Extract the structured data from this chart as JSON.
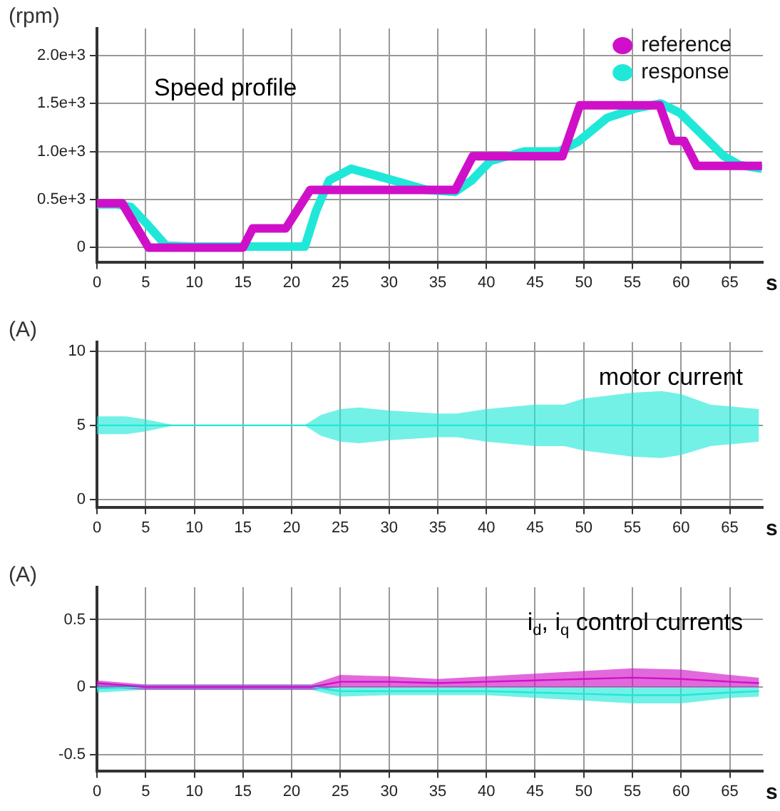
{
  "chart_data": [
    {
      "type": "line",
      "title": "Speed profile",
      "ylabel": "(rpm)",
      "xlabel": "s",
      "xlim": [
        0,
        68.4
      ],
      "xticks": [
        0,
        5,
        10,
        15,
        20,
        25,
        30,
        35,
        40,
        45,
        50,
        55,
        60,
        65
      ],
      "ylim": [
        -150,
        2280
      ],
      "yticks": [
        0,
        {
          "value": 500,
          "label": "0.5e+3"
        },
        {
          "value": 1000,
          "label": "1.0e+3"
        },
        {
          "value": 1500,
          "label": "1.5e+3"
        },
        {
          "value": 2000,
          "label": "2.0e+3"
        }
      ],
      "grid": true,
      "legend": "top right",
      "marker": "none",
      "line_style": "solid",
      "series": [
        {
          "name": "reference",
          "color": "#d010c8",
          "x": [
            0,
            2.6,
            5.3,
            15,
            16,
            19.4,
            21.9,
            36.8,
            38.6,
            47.8,
            49.6,
            57.8,
            59.1,
            60.3,
            61.6,
            68.3
          ],
          "values": [
            460,
            460,
            0,
            0,
            200,
            200,
            600,
            600,
            950,
            950,
            1480,
            1480,
            1110,
            1110,
            850,
            850
          ]
        },
        {
          "name": "response",
          "color": "#20e8d8",
          "x": [
            0,
            2,
            3.5,
            5,
            7.1,
            10,
            15,
            21.35,
            22.5,
            23.85,
            26.1,
            29,
            33.9,
            36.8,
            38.5,
            40.4,
            43.9,
            47.4,
            49.4,
            52.4,
            55.4,
            57.9,
            59.9,
            61.9,
            64.4,
            66,
            68.3
          ],
          "values": [
            450,
            450,
            420,
            260,
            20,
            10,
            10,
            10,
            380,
            700,
            820,
            740,
            600,
            580,
            700,
            900,
            1000,
            1000,
            1100,
            1350,
            1450,
            1500,
            1400,
            1200,
            950,
            860,
            820
          ]
        }
      ]
    },
    {
      "type": "line",
      "title": "motor current",
      "ylabel": "(A)",
      "xlabel": "s",
      "xlim": [
        0,
        68.4
      ],
      "xticks": [
        0,
        5,
        10,
        15,
        20,
        25,
        30,
        35,
        40,
        45,
        50,
        55,
        60,
        65
      ],
      "ylim": [
        -0.5,
        10.6
      ],
      "yticks": [
        0,
        5,
        10
      ],
      "grid": true,
      "marker": "none",
      "line_style": "solid",
      "x": [
        0,
        3,
        5,
        8,
        21.3,
        23,
        25,
        27,
        30,
        35,
        37,
        40,
        45,
        48,
        50,
        55,
        58,
        60,
        63,
        68
      ],
      "series": [
        {
          "color": "#20e8d8",
          "values": [
            5,
            5,
            5,
            5,
            5,
            5,
            5,
            5,
            5,
            5,
            5,
            5,
            5,
            5,
            5,
            5,
            5,
            5,
            5,
            5
          ],
          "lower": [
            4.4,
            4.4,
            4.6,
            5.0,
            5.0,
            4.3,
            3.9,
            3.8,
            4.0,
            4.2,
            4.2,
            3.9,
            3.6,
            3.6,
            3.3,
            2.9,
            2.8,
            3.0,
            3.6,
            3.9
          ],
          "upper": [
            5.6,
            5.6,
            5.4,
            5.0,
            5.0,
            5.7,
            6.1,
            6.2,
            6.0,
            5.8,
            5.8,
            6.1,
            6.4,
            6.4,
            6.8,
            7.2,
            7.3,
            7.1,
            6.4,
            6.1
          ]
        }
      ]
    },
    {
      "type": "line",
      "title": "i$_{d}$, i$_{q}$ control currents",
      "ylabel": "(A)",
      "xlabel": "s",
      "xlim": [
        0,
        68.4
      ],
      "xticks": [
        0,
        5,
        10,
        15,
        20,
        25,
        30,
        35,
        40,
        45,
        50,
        55,
        60,
        65
      ],
      "ylim": [
        -0.62,
        0.74
      ],
      "yticks": [
        0.5,
        0,
        -0.5
      ],
      "grid": true,
      "marker": "none",
      "line_style": "solid",
      "x": [
        0,
        5,
        10,
        15,
        22,
        25,
        30,
        35,
        40,
        45,
        50,
        55,
        60,
        65,
        68
      ],
      "series": [
        {
          "color": "#d010c8",
          "values": [
            0.03,
            0,
            0,
            0,
            0,
            0.04,
            0.04,
            0.03,
            0.04,
            0.05,
            0.06,
            0.07,
            0.06,
            0.04,
            0.03
          ],
          "lower": [
            0,
            -0.02,
            -0.02,
            -0.02,
            -0.02,
            0,
            0,
            0,
            0,
            0,
            0,
            0,
            0,
            0,
            0
          ],
          "upper": [
            0.05,
            0.02,
            0.02,
            0.02,
            0.02,
            0.09,
            0.08,
            0.06,
            0.08,
            0.1,
            0.12,
            0.14,
            0.13,
            0.09,
            0.07
          ]
        },
        {
          "color": "#20e8d8",
          "values": [
            -0.01,
            0,
            0,
            0,
            0,
            -0.03,
            -0.03,
            -0.03,
            -0.03,
            -0.04,
            -0.05,
            -0.06,
            -0.06,
            -0.04,
            -0.03
          ],
          "lower": [
            -0.04,
            -0.02,
            -0.02,
            -0.02,
            -0.02,
            -0.07,
            -0.06,
            -0.06,
            -0.06,
            -0.08,
            -0.1,
            -0.12,
            -0.12,
            -0.08,
            -0.07
          ],
          "upper": [
            0.02,
            0.02,
            0.02,
            0.02,
            0.02,
            0,
            0,
            0,
            0,
            0,
            0,
            0,
            0,
            0,
            0
          ]
        }
      ]
    }
  ]
}
